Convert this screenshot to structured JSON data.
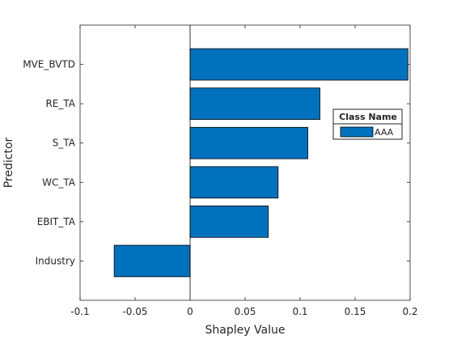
{
  "chart_data": {
    "type": "bar",
    "orientation": "horizontal",
    "xlabel": "Shapley Value",
    "ylabel": "Predictor",
    "xlim": [
      -0.1,
      0.2
    ],
    "xticks": [
      -0.1,
      -0.05,
      0,
      0.05,
      0.1,
      0.15,
      0.2
    ],
    "xtick_labels": [
      "-0.1",
      "-0.05",
      "0",
      "0.05",
      "0.1",
      "0.15",
      "0.2"
    ],
    "categories": [
      "MVE_BVTD",
      "RE_TA",
      "S_TA",
      "WC_TA",
      "EBIT_TA",
      "Industry"
    ],
    "series": [
      {
        "name": "AAA",
        "values": [
          0.198,
          0.118,
          0.107,
          0.08,
          0.071,
          -0.069
        ]
      }
    ],
    "legend": {
      "title": "Class Name",
      "placement": "right",
      "entries": [
        "AAA"
      ]
    },
    "grid": false,
    "colors": {
      "bar": "#0072BD",
      "bar_edge": "#000000",
      "axis": "#262626",
      "background": "#ffffff"
    }
  }
}
